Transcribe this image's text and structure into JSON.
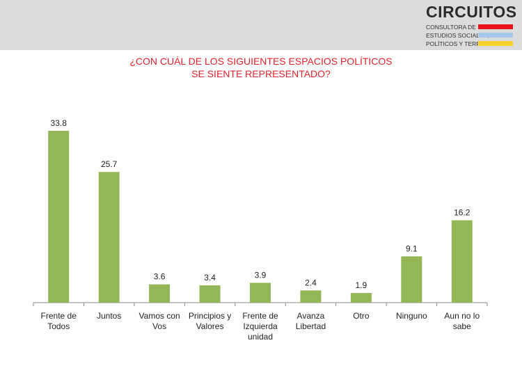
{
  "header": {
    "logo_name": "CIRCUITOS",
    "logo_line1": "CONSULTORA DE",
    "logo_line2": "ESTUDIOS SOCIALES,",
    "logo_line3": "POLÍTICOS Y TERRITORIALES",
    "stripe_colors": [
      "#e8141c",
      "#a7c8ea",
      "#f6d22a"
    ]
  },
  "chart_data": {
    "type": "bar",
    "title_lines": [
      "¿CON CUÁL DE LOS SIGUIENTES ESPACIOS POLÍTICOS",
      "SE SIENTE REPRESENTADO?"
    ],
    "categories": [
      [
        "Frente de",
        "Todos"
      ],
      [
        "Juntos"
      ],
      [
        "Vamos con",
        "Vos"
      ],
      [
        "Principios y",
        "Valores"
      ],
      [
        "Frente de",
        "Izquierda",
        "unidad"
      ],
      [
        "Avanza",
        "Libertad"
      ],
      [
        "Otro"
      ],
      [
        "Ninguno"
      ],
      [
        "Aun no lo",
        "sabe"
      ]
    ],
    "values": [
      33.8,
      25.7,
      3.6,
      3.4,
      3.9,
      2.4,
      1.9,
      9.1,
      16.2
    ],
    "value_labels": [
      "33.8",
      "25.7",
      "3.6",
      "3.4",
      "3.9",
      "2.4",
      "1.9",
      "9.1",
      "16.2"
    ],
    "ylim": [
      0,
      35
    ],
    "bar_color": "#93b757",
    "title_color": "#e0232a",
    "grid": false
  }
}
